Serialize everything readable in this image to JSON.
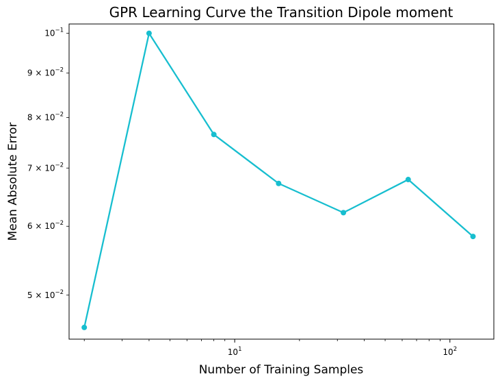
{
  "chart_data": {
    "type": "line",
    "title": "GPR Learning Curve the Transition Dipole moment",
    "xlabel": "Number of Training Samples",
    "ylabel": "Mean Absolute Error",
    "xscale": "log",
    "yscale": "log",
    "xlim": [
      1.7,
      160
    ],
    "ylim": [
      0.0445,
      0.1025
    ],
    "grid": false,
    "series": [
      {
        "x": [
          2,
          4,
          8,
          16,
          32,
          64,
          128
        ],
        "y": [
          0.0459,
          0.1,
          0.0765,
          0.0672,
          0.0622,
          0.0679,
          0.0584
        ],
        "color": "#17becf"
      }
    ],
    "x_tick_labels": [
      {
        "value": 10,
        "base": "10",
        "exp": "1"
      },
      {
        "value": 100,
        "base": "10",
        "exp": "2"
      }
    ],
    "y_tick_labels": [
      {
        "value": 0.1,
        "mant": "",
        "base": "10",
        "exp": "−1"
      },
      {
        "value": 0.09,
        "mant": "9 × ",
        "base": "10",
        "exp": "−2"
      },
      {
        "value": 0.08,
        "mant": "8 × ",
        "base": "10",
        "exp": "−2"
      },
      {
        "value": 0.07,
        "mant": "7 × ",
        "base": "10",
        "exp": "−2"
      },
      {
        "value": 0.06,
        "mant": "6 × ",
        "base": "10",
        "exp": "−2"
      },
      {
        "value": 0.05,
        "mant": "5 × ",
        "base": "10",
        "exp": "−2"
      }
    ]
  }
}
